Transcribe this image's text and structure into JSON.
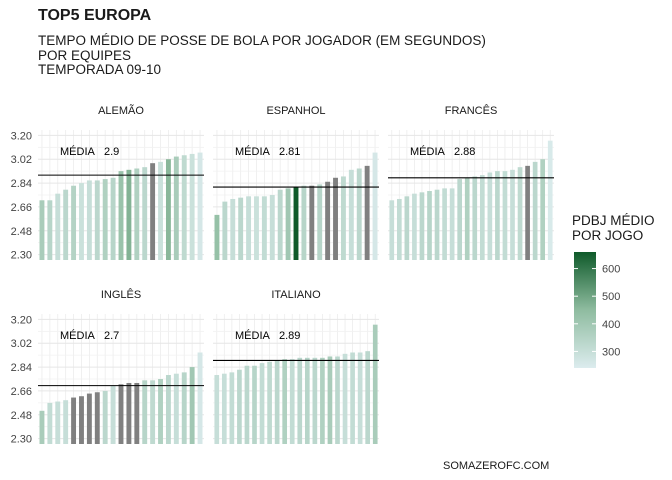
{
  "title": "TOP5 EUROPA",
  "subtitle_lines": [
    "TEMPO MÉDIO DE POSSE DE BOLA POR JOGADOR (EM SEGUNDOS)",
    "POR EQUIPES",
    "TEMPORADA 09-10"
  ],
  "caption": "SOMAZEROFC.COM",
  "chart_data": {
    "type": "bar",
    "title": "TOP5 EUROPA",
    "ylim": [
      2.3,
      3.2
    ],
    "y_ticks": [
      "2.30",
      "2.48",
      "2.66",
      "2.84",
      "3.02",
      "3.20"
    ],
    "y_tick_values": [
      2.3,
      2.48,
      2.66,
      2.84,
      3.02,
      3.2
    ],
    "grid": true,
    "legend": {
      "title_lines": [
        "PDBJ MÉDIO",
        "POR JOGO"
      ],
      "ticks": [
        "600",
        "500",
        "400",
        "300"
      ],
      "tick_values": [
        600,
        500,
        400,
        300
      ],
      "range": [
        240,
        660
      ],
      "color_low": "#dcecee",
      "color_high": "#0f5a2a",
      "placement": "right"
    },
    "facets": [
      {
        "name": "ALEMÃO",
        "mean": 2.9,
        "mean_label": "MÉDIA",
        "mean_value_label": "2.9",
        "values": [
          2.71,
          2.71,
          2.76,
          2.79,
          2.82,
          2.84,
          2.86,
          2.86,
          2.87,
          2.88,
          2.93,
          2.94,
          2.95,
          2.96,
          2.99,
          3.0,
          3.02,
          3.04,
          3.05,
          3.06,
          3.07
        ],
        "color_values": [
          380,
          340,
          300,
          330,
          350,
          290,
          300,
          330,
          360,
          340,
          420,
          470,
          360,
          330,
          450,
          290,
          460,
          380,
          320,
          290,
          260
        ],
        "gray": [
          false,
          false,
          false,
          false,
          false,
          false,
          false,
          false,
          false,
          false,
          false,
          false,
          false,
          false,
          true,
          false,
          false,
          false,
          false,
          false,
          false
        ]
      },
      {
        "name": "ESPANHOL",
        "mean": 2.81,
        "mean_label": "MÉDIA",
        "mean_value_label": "2.81",
        "values": [
          2.6,
          2.7,
          2.72,
          2.73,
          2.74,
          2.74,
          2.74,
          2.75,
          2.79,
          2.8,
          2.81,
          2.82,
          2.82,
          2.83,
          2.85,
          2.88,
          2.89,
          2.94,
          2.95,
          2.97,
          3.07
        ],
        "color_values": [
          430,
          330,
          300,
          330,
          300,
          290,
          310,
          300,
          330,
          400,
          660,
          340,
          330,
          340,
          300,
          420,
          320,
          300,
          330,
          300,
          260
        ],
        "gray": [
          false,
          false,
          false,
          false,
          false,
          false,
          false,
          false,
          false,
          false,
          false,
          false,
          true,
          false,
          true,
          true,
          false,
          false,
          false,
          true,
          false
        ]
      },
      {
        "name": "FRANCÊS",
        "mean": 2.88,
        "mean_label": "MÉDIA",
        "mean_value_label": "2.88",
        "values": [
          2.71,
          2.72,
          2.74,
          2.76,
          2.77,
          2.78,
          2.79,
          2.8,
          2.8,
          2.87,
          2.88,
          2.89,
          2.9,
          2.92,
          2.93,
          2.93,
          2.94,
          2.96,
          2.97,
          3.0,
          3.02,
          3.16
        ],
        "color_values": [
          300,
          310,
          330,
          300,
          330,
          340,
          330,
          310,
          300,
          330,
          360,
          330,
          310,
          300,
          330,
          310,
          300,
          320,
          440,
          330,
          360,
          250
        ],
        "gray": [
          false,
          false,
          false,
          false,
          false,
          false,
          false,
          false,
          false,
          false,
          false,
          false,
          false,
          false,
          false,
          false,
          false,
          false,
          true,
          false,
          false,
          false
        ]
      },
      {
        "name": "INGLÊS",
        "mean": 2.7,
        "mean_label": "MÉDIA",
        "mean_value_label": "2.7",
        "values": [
          2.51,
          2.57,
          2.58,
          2.59,
          2.61,
          2.62,
          2.64,
          2.65,
          2.66,
          2.7,
          2.71,
          2.72,
          2.72,
          2.74,
          2.74,
          2.75,
          2.78,
          2.79,
          2.8,
          2.84,
          2.95
        ],
        "color_values": [
          380,
          310,
          300,
          300,
          330,
          320,
          340,
          310,
          330,
          300,
          330,
          330,
          310,
          340,
          320,
          360,
          330,
          300,
          340,
          400,
          260
        ],
        "gray": [
          false,
          false,
          false,
          false,
          true,
          true,
          true,
          true,
          false,
          false,
          true,
          true,
          true,
          false,
          false,
          false,
          false,
          false,
          false,
          false,
          false
        ]
      },
      {
        "name": "ITALIANO",
        "mean": 2.89,
        "mean_label": "MÉDIA",
        "mean_value_label": "2.89",
        "values": [
          2.78,
          2.79,
          2.8,
          2.82,
          2.85,
          2.85,
          2.87,
          2.88,
          2.89,
          2.9,
          2.9,
          2.91,
          2.91,
          2.91,
          2.91,
          2.92,
          2.92,
          2.94,
          2.95,
          2.95,
          2.96,
          3.16
        ],
        "color_values": [
          300,
          300,
          310,
          330,
          330,
          340,
          310,
          320,
          330,
          360,
          310,
          330,
          340,
          330,
          360,
          380,
          330,
          300,
          310,
          300,
          330,
          380
        ],
        "gray": [
          false,
          false,
          false,
          false,
          false,
          false,
          false,
          false,
          false,
          false,
          false,
          false,
          false,
          false,
          false,
          false,
          false,
          false,
          false,
          false,
          false,
          false
        ]
      }
    ]
  }
}
